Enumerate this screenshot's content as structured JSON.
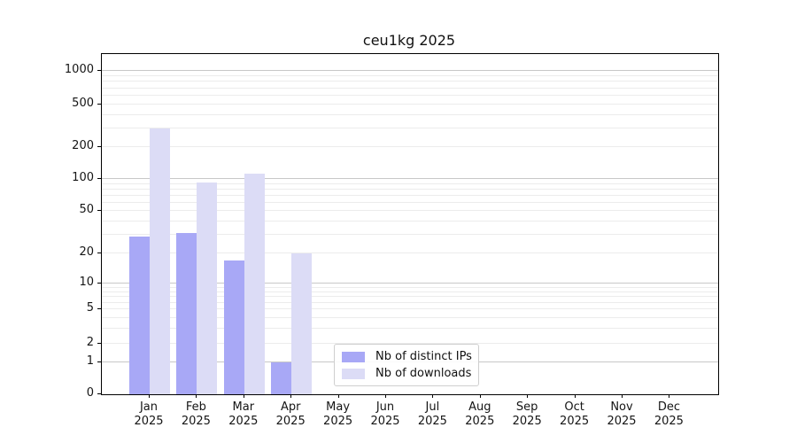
{
  "chart_data": {
    "type": "bar",
    "title": "ceu1kg 2025",
    "scale": "symlog",
    "grid": true,
    "legend_position": "lower-center",
    "categories": [
      {
        "month": "Jan",
        "year": "2025"
      },
      {
        "month": "Feb",
        "year": "2025"
      },
      {
        "month": "Mar",
        "year": "2025"
      },
      {
        "month": "Apr",
        "year": "2025"
      },
      {
        "month": "May",
        "year": "2025"
      },
      {
        "month": "Jun",
        "year": "2025"
      },
      {
        "month": "Jul",
        "year": "2025"
      },
      {
        "month": "Aug",
        "year": "2025"
      },
      {
        "month": "Sep",
        "year": "2025"
      },
      {
        "month": "Oct",
        "year": "2025"
      },
      {
        "month": "Nov",
        "year": "2025"
      },
      {
        "month": "Dec",
        "year": "2025"
      }
    ],
    "series": [
      {
        "name": "Nb of distinct IPs",
        "color": "#a8a8f6",
        "values": [
          29,
          31,
          17,
          1,
          0,
          0,
          0,
          0,
          0,
          0,
          0,
          0
        ]
      },
      {
        "name": "Nb of downloads",
        "color": "#dcdcf6",
        "values": [
          300,
          94,
          113,
          20,
          0,
          0,
          0,
          0,
          0,
          0,
          0,
          0
        ]
      }
    ],
    "yticks": [
      0,
      1,
      2,
      5,
      10,
      20,
      50,
      100,
      200,
      500,
      1000
    ],
    "ylim": [
      0,
      1430
    ]
  },
  "colors": {
    "major_grid": "#c8c8c8",
    "minor_grid": "#ececec",
    "axis": "#000000",
    "text": "#151515"
  }
}
